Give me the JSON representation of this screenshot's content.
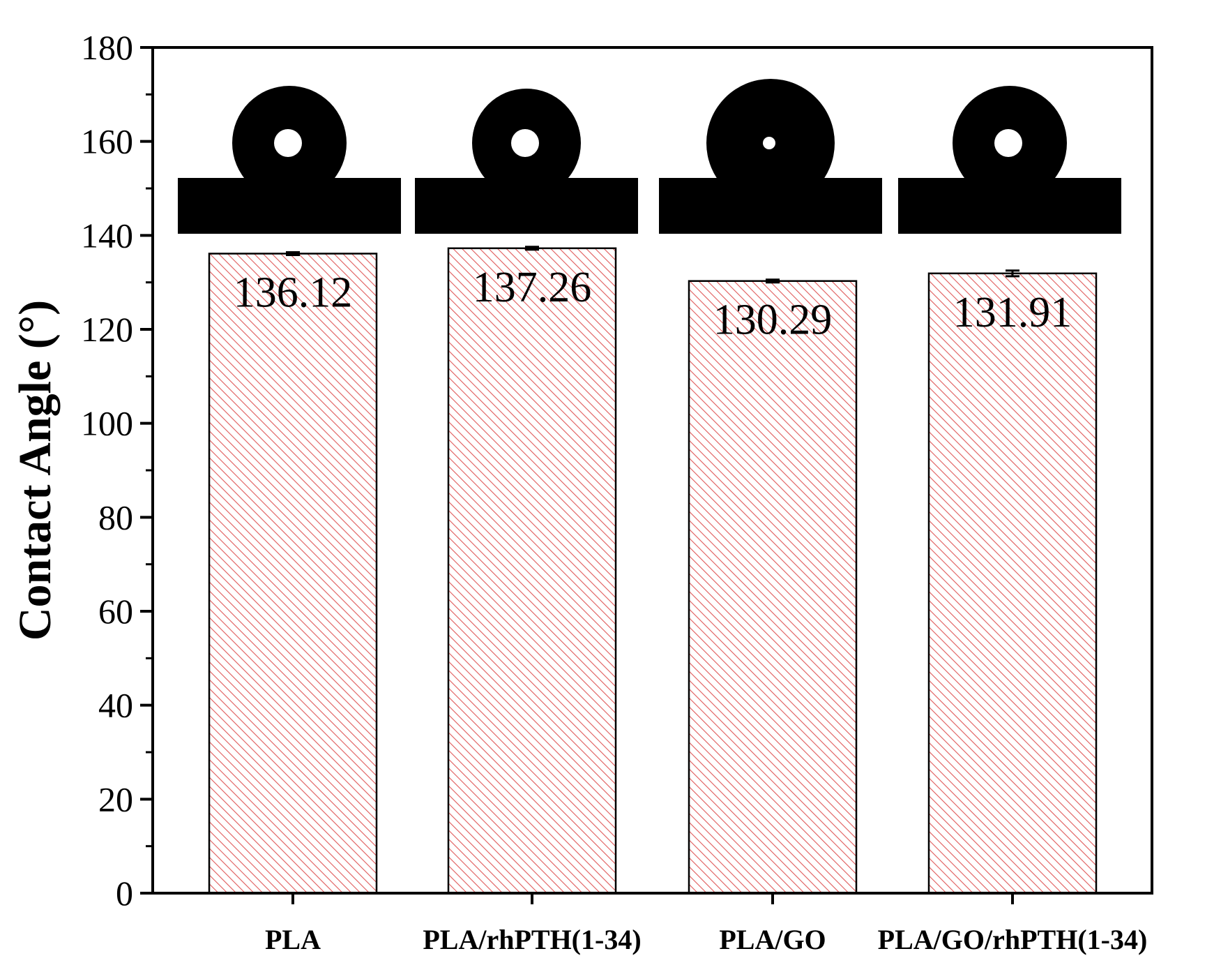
{
  "chart_data": {
    "type": "bar",
    "title": "",
    "xlabel": "",
    "ylabel": "Contact Angle (°)",
    "ylim": [
      0,
      180
    ],
    "yticks": [
      0,
      20,
      40,
      60,
      80,
      100,
      120,
      140,
      160,
      180
    ],
    "categories": [
      "PLA",
      "PLA/rhPTH(1-34)",
      "PLA/GO",
      "PLA/GO/rhPTH(1-34)"
    ],
    "values": [
      136.12,
      137.26,
      130.29,
      131.91
    ],
    "errors": [
      0.3,
      0.3,
      0.3,
      0.6
    ],
    "data_labels": [
      "136.12",
      "137.26",
      "130.29",
      "131.91"
    ],
    "bar_fill": "hatched",
    "hatch_color": "#e05a5a",
    "bar_edge_color": "#000000",
    "grid": false,
    "legend": "none",
    "insets": [
      "droplet-image",
      "droplet-image",
      "droplet-image",
      "droplet-image"
    ]
  }
}
